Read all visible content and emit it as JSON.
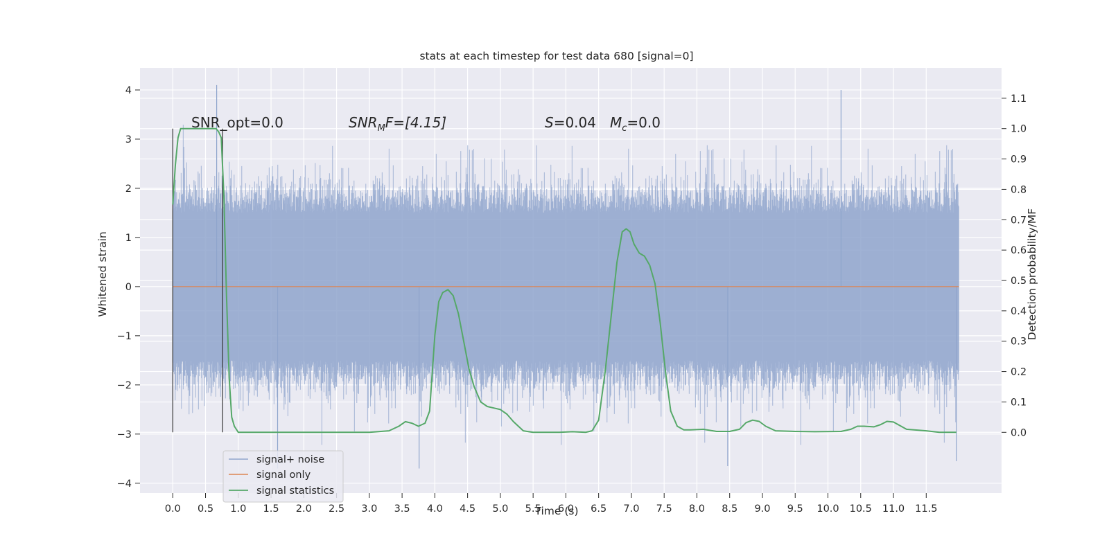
{
  "chart_data": {
    "type": "line",
    "title": "stats at each timestep for test data 680 [signal=0]",
    "xlabel": "Time (s)",
    "ylabel_left": "Whitened strain",
    "ylabel_right": "Detection probability/MF",
    "xlim": [
      -0.5,
      12.65
    ],
    "ylim_left": [
      -4.2,
      4.45
    ],
    "ylim_right": [
      -0.2,
      1.2
    ],
    "x_ticks": [
      "0.0",
      "0.5",
      "1.0",
      "1.5",
      "2.0",
      "2.5",
      "3.0",
      "3.5",
      "4.0",
      "4.5",
      "5.0",
      "5.5",
      "6.0",
      "6.5",
      "7.0",
      "7.5",
      "8.0",
      "8.5",
      "9.0",
      "9.5",
      "10.0",
      "10.5",
      "11.0",
      "11.5"
    ],
    "y_ticks_left": [
      "4",
      "3",
      "2",
      "1",
      "0",
      "−1",
      "−2",
      "−3",
      "−4"
    ],
    "y_ticks_right": [
      "1.1",
      "1.0",
      "0.9",
      "0.8",
      "0.7",
      "0.6",
      "0.5",
      "0.4",
      "0.3",
      "0.2",
      "0.1",
      "0.0"
    ],
    "grid": true,
    "legend_position": "lower-left",
    "annotations": {
      "snr_opt": "SNR_opt=0.0",
      "snr_mf_prefix": "SNR",
      "snr_mf_sub": "M",
      "snr_mf_suffix": "F=[4.15]",
      "s_italic": "S",
      "s_value": "=0.04",
      "mc_italic": "M",
      "mc_sub": "c",
      "mc_value": "=0.0"
    },
    "vertical_lines_x": [
      0.0,
      0.76
    ],
    "series": [
      {
        "name": "signal+ noise",
        "color": "#8fa5cc",
        "description": "whitened strain noise, roughly within ±2.3 with spikes to 4.1 and -3.7",
        "x_range": [
          0.0,
          12.0
        ],
        "bulk_envelope": [
          -1.5,
          1.5
        ],
        "peak_envelope": [
          -3.7,
          4.1
        ]
      },
      {
        "name": "signal only",
        "color": "#dd8452",
        "x": [
          0.0,
          12.0
        ],
        "y": [
          0.0,
          0.0
        ]
      },
      {
        "name": "signal statistics",
        "color": "#55a868",
        "axis": "right",
        "x": [
          0.0,
          0.04,
          0.08,
          0.12,
          0.2,
          0.3,
          0.4,
          0.5,
          0.6,
          0.66,
          0.7,
          0.74,
          0.78,
          0.82,
          0.86,
          0.9,
          0.94,
          1.0,
          1.2,
          1.5,
          2.0,
          2.5,
          3.0,
          3.3,
          3.45,
          3.55,
          3.65,
          3.75,
          3.85,
          3.92,
          4.0,
          4.06,
          4.12,
          4.2,
          4.28,
          4.36,
          4.44,
          4.52,
          4.6,
          4.7,
          4.8,
          4.9,
          5.0,
          5.1,
          5.2,
          5.35,
          5.5,
          5.7,
          5.9,
          6.1,
          6.3,
          6.4,
          6.5,
          6.6,
          6.7,
          6.78,
          6.86,
          6.92,
          6.98,
          7.04,
          7.12,
          7.2,
          7.28,
          7.36,
          7.44,
          7.52,
          7.6,
          7.7,
          7.8,
          7.9,
          8.1,
          8.3,
          8.5,
          8.65,
          8.75,
          8.85,
          8.95,
          9.05,
          9.2,
          9.5,
          9.8,
          10.2,
          10.35,
          10.45,
          10.55,
          10.7,
          10.8,
          10.9,
          11.0,
          11.2,
          11.5,
          11.7,
          11.96
        ],
        "y": [
          0.75,
          0.88,
          0.97,
          1.0,
          1.0,
          1.0,
          1.0,
          1.0,
          1.0,
          1.0,
          0.99,
          0.97,
          0.78,
          0.45,
          0.18,
          0.05,
          0.02,
          0.0,
          0.0,
          0.0,
          0.0,
          0.0,
          0.0,
          0.005,
          0.02,
          0.035,
          0.03,
          0.02,
          0.03,
          0.07,
          0.32,
          0.43,
          0.46,
          0.47,
          0.45,
          0.39,
          0.3,
          0.21,
          0.15,
          0.1,
          0.085,
          0.08,
          0.075,
          0.06,
          0.035,
          0.005,
          0.0,
          0.0,
          0.0,
          0.002,
          0.0,
          0.005,
          0.04,
          0.2,
          0.4,
          0.56,
          0.66,
          0.67,
          0.66,
          0.62,
          0.59,
          0.58,
          0.55,
          0.49,
          0.36,
          0.2,
          0.07,
          0.02,
          0.008,
          0.008,
          0.01,
          0.003,
          0.003,
          0.01,
          0.032,
          0.04,
          0.036,
          0.02,
          0.005,
          0.003,
          0.002,
          0.003,
          0.01,
          0.02,
          0.02,
          0.018,
          0.025,
          0.036,
          0.034,
          0.01,
          0.005,
          0.0,
          0.0
        ]
      }
    ]
  }
}
